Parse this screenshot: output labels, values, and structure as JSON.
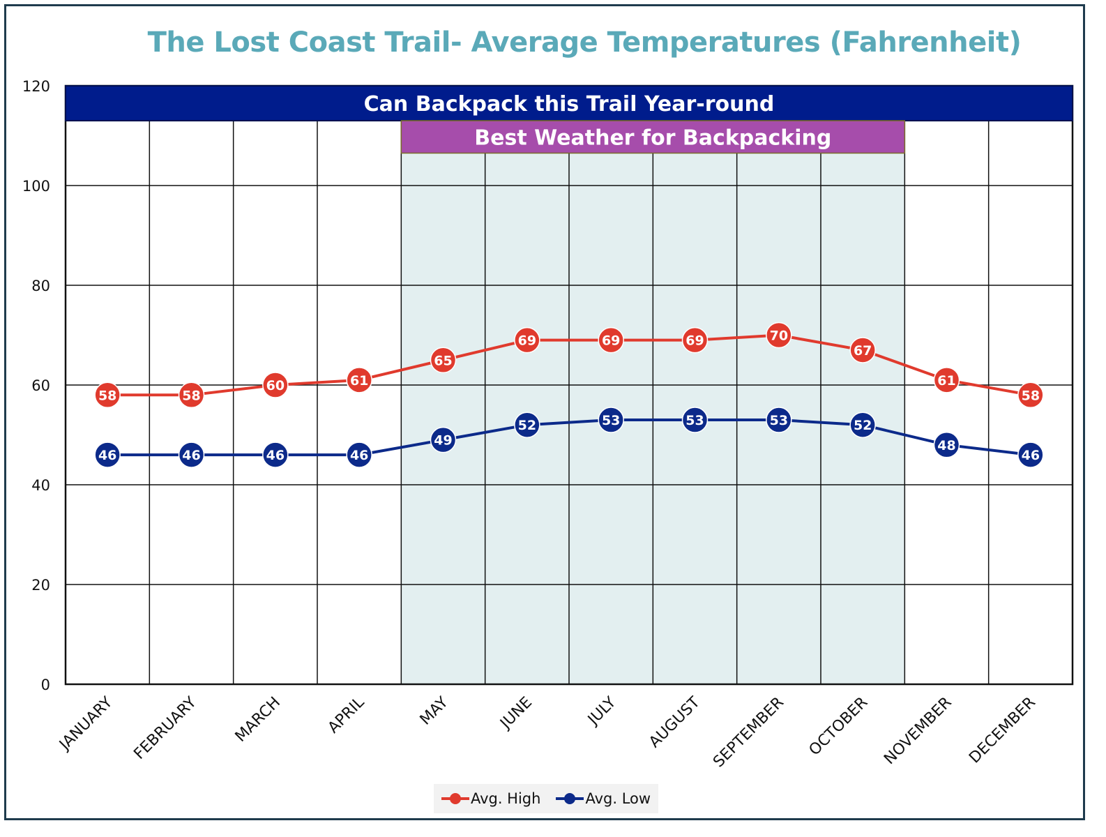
{
  "title": "The Lost Coast Trail- Average Temperatures (Fahrenheit)",
  "colors": {
    "title": "#5aa9b8",
    "high": "#e03a2d",
    "low": "#0c2a8a",
    "band_year": "#001c8c",
    "band_best": "#a64dab",
    "best_fill": "#e3eff0",
    "grid": "#111111"
  },
  "chart_data": {
    "type": "line",
    "title": "The Lost Coast Trail- Average Temperatures (Fahrenheit)",
    "xlabel": "",
    "ylabel": "",
    "ylim": [
      0,
      120
    ],
    "yticks": [
      0,
      20,
      40,
      60,
      80,
      100,
      120
    ],
    "grid": true,
    "legend_position": "bottom",
    "categories": [
      "JANUARY",
      "FEBRUARY",
      "MARCH",
      "APRIL",
      "MAY",
      "JUNE",
      "JULY",
      "AUGUST",
      "SEPTEMBER",
      "OCTOBER",
      "NOVEMBER",
      "DECEMBER"
    ],
    "series": [
      {
        "name": "Avg. High",
        "values": [
          58,
          58,
          60,
          61,
          65,
          69,
          69,
          69,
          70,
          67,
          61,
          58
        ]
      },
      {
        "name": "Avg. Low",
        "values": [
          46,
          46,
          46,
          46,
          49,
          52,
          53,
          53,
          53,
          52,
          48,
          46
        ]
      }
    ],
    "annotations": [
      {
        "label": "Can Backpack this Trail Year-round",
        "start_month": "JANUARY",
        "end_month": "DECEMBER",
        "y_from": 113,
        "y_to": 120
      },
      {
        "label": "Best Weather for Backpacking",
        "start_month": "MAY",
        "end_month": "OCTOBER",
        "y_from": 106.5,
        "y_to": 113
      }
    ]
  }
}
